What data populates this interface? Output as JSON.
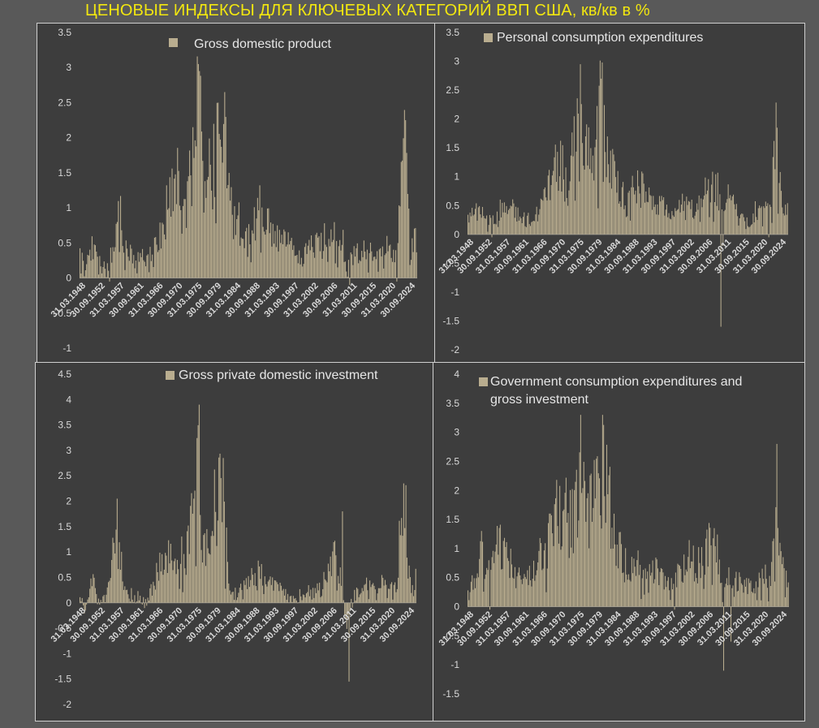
{
  "page": {
    "title": "ЦЕНОВЫЕ ИНДЕКСЫ ДЛЯ КЛЮЧЕВЫХ КАТЕГОРИЙ ВВП США, кв/кв в %"
  },
  "colors": {
    "background": "#595959",
    "panel": "#3d3d3d",
    "bar": "#b9ad8f",
    "title": "#f2e70f",
    "text": "#d9d9d9"
  },
  "chart_data": [
    {
      "type": "bar",
      "title": "",
      "legend": "Gross domestic product",
      "xlabel": "",
      "ylabel": "",
      "ylim": [
        -1,
        3.5
      ],
      "yticks": [
        "3.5",
        "3",
        "2.5",
        "2",
        "1.5",
        "1",
        "0.5",
        "0",
        "-0.5",
        "-1"
      ],
      "xticks": [
        "31.03.1948",
        "30.09.1952",
        "31.03.1957",
        "30.09.1961",
        "31.03.1966",
        "30.09.1970",
        "31.03.1975",
        "30.09.1979",
        "31.03.1984",
        "30.09.1988",
        "31.03.1993",
        "30.09.1997",
        "31.03.2002",
        "30.09.2006",
        "31.03.2011",
        "30.09.2015",
        "31.03.2020",
        "30.09.2024"
      ],
      "x_range": [
        "31.03.1948",
        "31.12.2024"
      ],
      "frequency": "quarterly",
      "anchors": [
        [
          1948.0,
          0.35
        ],
        [
          1949.0,
          0.15
        ],
        [
          1950.0,
          0.3
        ],
        [
          1951.0,
          0.45
        ],
        [
          1952.0,
          0.3
        ],
        [
          1953.0,
          0.2
        ],
        [
          1954.0,
          0.15
        ],
        [
          1955.0,
          0.3
        ],
        [
          1956.5,
          0.65
        ],
        [
          1957.0,
          0.95
        ],
        [
          1958.0,
          0.4
        ],
        [
          1959.0,
          0.35
        ],
        [
          1961.0,
          0.25
        ],
        [
          1963.0,
          0.3
        ],
        [
          1965.0,
          0.4
        ],
        [
          1967.0,
          0.75
        ],
        [
          1969.0,
          1.2
        ],
        [
          1970.5,
          1.3
        ],
        [
          1972.0,
          0.9
        ],
        [
          1974.0,
          1.8
        ],
        [
          1975.0,
          2.5
        ],
        [
          1976.0,
          1.5
        ],
        [
          1977.0,
          1.5
        ],
        [
          1979.0,
          1.9
        ],
        [
          1980.5,
          2.2
        ],
        [
          1981.5,
          1.7
        ],
        [
          1982.5,
          1.0
        ],
        [
          1984.0,
          0.8
        ],
        [
          1986.0,
          0.5
        ],
        [
          1988.0,
          0.8
        ],
        [
          1989.0,
          0.95
        ],
        [
          1990.5,
          0.8
        ],
        [
          1992.0,
          0.6
        ],
        [
          1994.0,
          0.5
        ],
        [
          1997.0,
          0.4
        ],
        [
          1999.0,
          0.3
        ],
        [
          2001.0,
          0.5
        ],
        [
          2003.0,
          0.45
        ],
        [
          2005.0,
          0.7
        ],
        [
          2006.5,
          0.75
        ],
        [
          2008.0,
          0.5
        ],
        [
          2009.0,
          0.1
        ],
        [
          2010.0,
          0.3
        ],
        [
          2012.0,
          0.4
        ],
        [
          2014.0,
          0.4
        ],
        [
          2016.0,
          0.25
        ],
        [
          2018.0,
          0.45
        ],
        [
          2019.0,
          0.4
        ],
        [
          2020.0,
          0.35
        ],
        [
          2021.0,
          1.1
        ],
        [
          2022.0,
          1.9
        ],
        [
          2022.5,
          1.6
        ],
        [
          2023.0,
          0.9
        ],
        [
          2024.0,
          0.55
        ],
        [
          2024.9,
          0.5
        ]
      ],
      "spikes": [
        [
          1952.25,
          0.05
        ],
        [
          1954.75,
          -0.05
        ],
        [
          1975.0,
          3.05
        ],
        [
          1975.25,
          2.95
        ],
        [
          1981.0,
          2.65
        ],
        [
          2009.5,
          -0.1
        ],
        [
          2020.25,
          -0.05
        ],
        [
          2022.25,
          2.25
        ]
      ]
    },
    {
      "type": "bar",
      "title": "",
      "legend": "Personal consumption expenditures",
      "xlabel": "",
      "ylabel": "",
      "ylim": [
        -2,
        3.5
      ],
      "yticks": [
        "3.5",
        "3",
        "2.5",
        "2",
        "1.5",
        "1",
        "0.5",
        "0",
        "-0.5",
        "-1",
        "-1.5",
        "-2"
      ],
      "xticks": [
        "31.03.1948",
        "30.09.1952",
        "31.03.1957",
        "30.09.1961",
        "31.03.1966",
        "30.09.1970",
        "31.03.1975",
        "30.09.1979",
        "31.03.1984",
        "30.09.1988",
        "31.03.1993",
        "30.09.1997",
        "31.03.2002",
        "30.09.2006",
        "31.03.2011",
        "30.09.2015",
        "31.03.2020",
        "30.09.2024"
      ],
      "x_range": [
        "31.03.1948",
        "31.12.2024"
      ],
      "frequency": "quarterly",
      "anchors": [
        [
          1948.0,
          0.3
        ],
        [
          1950.0,
          0.4
        ],
        [
          1951.0,
          0.5
        ],
        [
          1952.0,
          0.3
        ],
        [
          1953.0,
          0.2
        ],
        [
          1955.0,
          0.3
        ],
        [
          1956.5,
          0.55
        ],
        [
          1957.5,
          0.6
        ],
        [
          1959.0,
          0.4
        ],
        [
          1961.0,
          0.3
        ],
        [
          1963.0,
          0.25
        ],
        [
          1965.0,
          0.4
        ],
        [
          1967.0,
          0.8
        ],
        [
          1969.0,
          1.1
        ],
        [
          1970.5,
          1.2
        ],
        [
          1972.0,
          0.8
        ],
        [
          1974.0,
          2.0
        ],
        [
          1975.0,
          2.6
        ],
        [
          1976.0,
          1.4
        ],
        [
          1977.0,
          1.3
        ],
        [
          1979.0,
          1.8
        ],
        [
          1980.0,
          2.5
        ],
        [
          1981.0,
          1.9
        ],
        [
          1982.0,
          1.2
        ],
        [
          1983.5,
          0.9
        ],
        [
          1985.0,
          0.7
        ],
        [
          1986.0,
          0.5
        ],
        [
          1988.0,
          0.8
        ],
        [
          1989.5,
          0.8
        ],
        [
          1991.0,
          0.7
        ],
        [
          1993.0,
          0.6
        ],
        [
          1995.0,
          0.5
        ],
        [
          1998.0,
          0.3
        ],
        [
          2000.0,
          0.6
        ],
        [
          2002.0,
          0.4
        ],
        [
          2004.0,
          0.6
        ],
        [
          2006.0,
          0.8
        ],
        [
          2007.5,
          0.9
        ],
        [
          2009.5,
          0.4
        ],
        [
          2011.0,
          0.7
        ],
        [
          2013.0,
          0.4
        ],
        [
          2015.0,
          0.2
        ],
        [
          2017.0,
          0.4
        ],
        [
          2019.0,
          0.4
        ],
        [
          2020.5,
          0.4
        ],
        [
          2021.0,
          1.2
        ],
        [
          2022.0,
          1.7
        ],
        [
          2022.5,
          1.4
        ],
        [
          2023.0,
          0.8
        ],
        [
          2024.0,
          0.5
        ],
        [
          2024.9,
          0.5
        ]
      ],
      "spikes": [
        [
          1953.75,
          -0.05
        ],
        [
          1975.0,
          2.95
        ],
        [
          1980.25,
          2.98
        ],
        [
          2008.75,
          -1.6
        ],
        [
          2009.25,
          -0.2
        ],
        [
          2020.25,
          -0.05
        ],
        [
          2022.25,
          1.85
        ]
      ]
    },
    {
      "type": "bar",
      "title": "",
      "legend": "Gross private domestic investment",
      "xlabel": "",
      "ylabel": "",
      "ylim": [
        -2,
        4.5
      ],
      "yticks": [
        "4.5",
        "4",
        "3.5",
        "3",
        "2.5",
        "2",
        "1.5",
        "1",
        "0.5",
        "0",
        "-0.5",
        "-1",
        "-1.5",
        "-2"
      ],
      "xticks": [
        "31.03.1948",
        "30.09.1952",
        "31.03.1957",
        "30.09.1961",
        "31.03.1966",
        "30.09.1970",
        "31.03.1975",
        "30.09.1979",
        "31.03.1984",
        "30.09.1988",
        "31.03.1993",
        "30.09.1997",
        "31.03.2002",
        "30.09.2006",
        "31.03.2011",
        "30.09.2015",
        "31.03.2020",
        "30.09.2024"
      ],
      "x_range": [
        "31.03.1948",
        "31.12.2024"
      ],
      "frequency": "quarterly",
      "anchors": [
        [
          1948.0,
          0.1
        ],
        [
          1949.0,
          -0.2
        ],
        [
          1950.0,
          0.2
        ],
        [
          1951.0,
          0.5
        ],
        [
          1952.0,
          0.1
        ],
        [
          1953.0,
          0.1
        ],
        [
          1954.0,
          0.2
        ],
        [
          1955.0,
          0.8
        ],
        [
          1956.0,
          1.5
        ],
        [
          1957.0,
          1.1
        ],
        [
          1958.0,
          0.3
        ],
        [
          1959.0,
          0.2
        ],
        [
          1961.0,
          0.1
        ],
        [
          1963.0,
          0.0
        ],
        [
          1965.0,
          0.6
        ],
        [
          1967.0,
          0.8
        ],
        [
          1969.0,
          1.0
        ],
        [
          1971.0,
          0.9
        ],
        [
          1972.5,
          1.0
        ],
        [
          1974.0,
          2.0
        ],
        [
          1975.0,
          2.6
        ],
        [
          1976.0,
          1.0
        ],
        [
          1978.0,
          1.8
        ],
        [
          1980.0,
          2.1
        ],
        [
          1981.0,
          1.9
        ],
        [
          1982.0,
          0.4
        ],
        [
          1983.0,
          0.1
        ],
        [
          1985.0,
          0.3
        ],
        [
          1987.0,
          0.5
        ],
        [
          1989.0,
          0.6
        ],
        [
          1991.0,
          0.4
        ],
        [
          1993.0,
          0.3
        ],
        [
          1995.0,
          0.2
        ],
        [
          1997.0,
          0.0
        ],
        [
          1999.0,
          0.2
        ],
        [
          2001.0,
          0.2
        ],
        [
          2003.0,
          0.3
        ],
        [
          2005.0,
          0.7
        ],
        [
          2006.5,
          0.9
        ],
        [
          2007.5,
          0.5
        ],
        [
          2009.0,
          -0.5
        ],
        [
          2010.0,
          0.0
        ],
        [
          2012.0,
          0.3
        ],
        [
          2014.0,
          0.4
        ],
        [
          2016.0,
          0.3
        ],
        [
          2018.0,
          0.5
        ],
        [
          2019.0,
          0.4
        ],
        [
          2020.5,
          0.3
        ],
        [
          2021.0,
          1.2
        ],
        [
          2022.0,
          2.0
        ],
        [
          2022.5,
          1.6
        ],
        [
          2023.0,
          0.6
        ],
        [
          2024.0,
          0.4
        ],
        [
          2024.9,
          0.5
        ]
      ],
      "spikes": [
        [
          1956.5,
          2.05
        ],
        [
          1975.25,
          3.9
        ],
        [
          1980.75,
          2.85
        ],
        [
          2008.0,
          1.8
        ],
        [
          2009.5,
          -1.55
        ],
        [
          2022.0,
          2.35
        ]
      ]
    },
    {
      "type": "bar",
      "title": "",
      "legend": "Government consumption expenditures and gross investment",
      "xlabel": "",
      "ylabel": "",
      "ylim": [
        -1.5,
        4
      ],
      "yticks": [
        "4",
        "3.5",
        "3",
        "2.5",
        "2",
        "1.5",
        "1",
        "0.5",
        "0",
        "-0.5",
        "-1",
        "-1.5"
      ],
      "xticks": [
        "31.03.1948",
        "30.09.1952",
        "31.03.1957",
        "30.09.1961",
        "31.03.1966",
        "30.09.1970",
        "31.03.1975",
        "30.09.1979",
        "31.03.1984",
        "30.09.1988",
        "31.03.1993",
        "30.09.1997",
        "31.03.2002",
        "30.09.2006",
        "31.03.2011",
        "30.09.2015",
        "31.03.2020",
        "30.09.2024"
      ],
      "x_range": [
        "31.03.1948",
        "31.12.2024"
      ],
      "frequency": "quarterly",
      "anchors": [
        [
          1948.0,
          0.3
        ],
        [
          1950.0,
          0.5
        ],
        [
          1951.0,
          1.0
        ],
        [
          1952.0,
          0.6
        ],
        [
          1954.0,
          0.7
        ],
        [
          1955.5,
          1.1
        ],
        [
          1957.0,
          0.9
        ],
        [
          1959.0,
          0.6
        ],
        [
          1961.0,
          0.5
        ],
        [
          1963.0,
          0.6
        ],
        [
          1965.0,
          0.8
        ],
        [
          1967.0,
          1.1
        ],
        [
          1969.0,
          1.6
        ],
        [
          1970.5,
          1.8
        ],
        [
          1972.0,
          1.5
        ],
        [
          1973.0,
          1.5
        ],
        [
          1974.5,
          2.2
        ],
        [
          1975.5,
          2.0
        ],
        [
          1977.0,
          1.5
        ],
        [
          1979.0,
          2.0
        ],
        [
          1980.5,
          2.4
        ],
        [
          1981.5,
          2.0
        ],
        [
          1983.0,
          1.2
        ],
        [
          1985.0,
          0.8
        ],
        [
          1987.0,
          0.6
        ],
        [
          1989.0,
          0.8
        ],
        [
          1991.0,
          0.7
        ],
        [
          1993.0,
          0.6
        ],
        [
          1995.0,
          0.5
        ],
        [
          1997.0,
          0.4
        ],
        [
          1999.0,
          0.6
        ],
        [
          2001.0,
          0.8
        ],
        [
          2003.0,
          0.7
        ],
        [
          2005.0,
          1.0
        ],
        [
          2006.5,
          1.2
        ],
        [
          2008.0,
          0.9
        ],
        [
          2009.0,
          0.2
        ],
        [
          2010.0,
          0.5
        ],
        [
          2012.0,
          0.5
        ],
        [
          2014.0,
          0.4
        ],
        [
          2016.0,
          0.3
        ],
        [
          2018.0,
          0.6
        ],
        [
          2019.5,
          0.5
        ],
        [
          2020.5,
          0.5
        ],
        [
          2021.0,
          1.1
        ],
        [
          2022.0,
          1.8
        ],
        [
          2022.5,
          1.6
        ],
        [
          2023.0,
          0.9
        ],
        [
          2024.0,
          0.6
        ],
        [
          2024.9,
          0.6
        ]
      ],
      "spikes": [
        [
          1953.25,
          -0.05
        ],
        [
          1975.0,
          3.3
        ],
        [
          1980.25,
          3.3
        ],
        [
          1997.5,
          -0.05
        ],
        [
          2009.25,
          -1.1
        ],
        [
          2011.0,
          -0.6
        ],
        [
          2022.0,
          2.8
        ]
      ]
    }
  ]
}
